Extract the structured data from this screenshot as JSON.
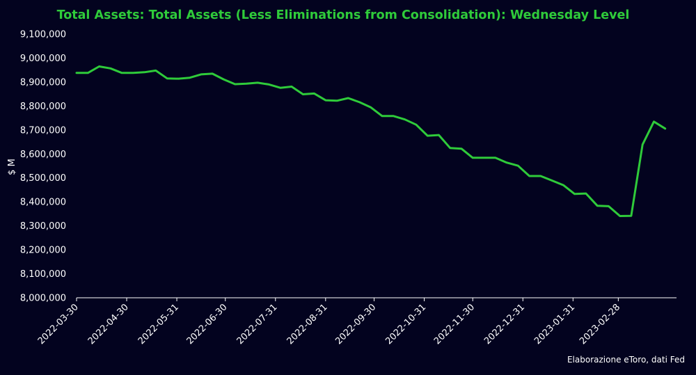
{
  "chart_data": {
    "type": "line",
    "title": "Total Assets: Total Assets (Less Eliminations from Consolidation): Wednesday Level",
    "xlabel": "",
    "ylabel": "$ M",
    "source_note": "Elaborazione eToro, dati Fed",
    "ylim": [
      8000000,
      9100000
    ],
    "y_ticks": [
      "8,000,000",
      "8,100,000",
      "8,200,000",
      "8,300,000",
      "8,400,000",
      "8,500,000",
      "8,600,000",
      "8,700,000",
      "8,800,000",
      "8,900,000",
      "9,000,000",
      "9,100,000"
    ],
    "y_tick_values": [
      8000000,
      8100000,
      8200000,
      8300000,
      8400000,
      8500000,
      8600000,
      8700000,
      8800000,
      8900000,
      9000000,
      9100000
    ],
    "x_ticks": [
      "2022-03-30",
      "2022-04-30",
      "2022-05-31",
      "2022-06-30",
      "2022-07-31",
      "2022-08-31",
      "2022-09-30",
      "2022-10-31",
      "2022-11-30",
      "2022-12-31",
      "2023-01-31",
      "2023-02-28"
    ],
    "xlim": [
      "2022-03-30",
      "2023-04-05"
    ],
    "grid": false,
    "series": [
      {
        "name": "",
        "color": "#2fcb3a",
        "x": [
          "2022-03-30",
          "2022-04-06",
          "2022-04-13",
          "2022-04-20",
          "2022-04-27",
          "2022-05-04",
          "2022-05-11",
          "2022-05-18",
          "2022-05-25",
          "2022-06-01",
          "2022-06-08",
          "2022-06-15",
          "2022-06-22",
          "2022-06-29",
          "2022-07-06",
          "2022-07-13",
          "2022-07-20",
          "2022-07-27",
          "2022-08-03",
          "2022-08-10",
          "2022-08-17",
          "2022-08-24",
          "2022-08-31",
          "2022-09-07",
          "2022-09-14",
          "2022-09-21",
          "2022-09-28",
          "2022-10-05",
          "2022-10-12",
          "2022-10-19",
          "2022-10-26",
          "2022-11-02",
          "2022-11-09",
          "2022-11-16",
          "2022-11-23",
          "2022-11-30",
          "2022-12-07",
          "2022-12-14",
          "2022-12-21",
          "2022-12-28",
          "2023-01-04",
          "2023-01-11",
          "2023-01-18",
          "2023-01-25",
          "2023-02-01",
          "2023-02-08",
          "2023-02-15",
          "2023-02-22",
          "2023-03-01",
          "2023-03-08",
          "2023-03-15",
          "2023-03-22",
          "2023-03-29"
        ],
        "values": [
          8938000,
          8938000,
          8965000,
          8957000,
          8938000,
          8938000,
          8941000,
          8948000,
          8915000,
          8914000,
          8918000,
          8932000,
          8935000,
          8911000,
          8891000,
          8893000,
          8897000,
          8890000,
          8876000,
          8881000,
          8849000,
          8852000,
          8824000,
          8822000,
          8833000,
          8816000,
          8794000,
          8758000,
          8758000,
          8744000,
          8722000,
          8676000,
          8679000,
          8625000,
          8622000,
          8584000,
          8584000,
          8584000,
          8564000,
          8551000,
          8508000,
          8508000,
          8489000,
          8470000,
          8433000,
          8435000,
          8384000,
          8382000,
          8341000,
          8342000,
          8639000,
          8735000,
          8706000
        ]
      }
    ]
  }
}
